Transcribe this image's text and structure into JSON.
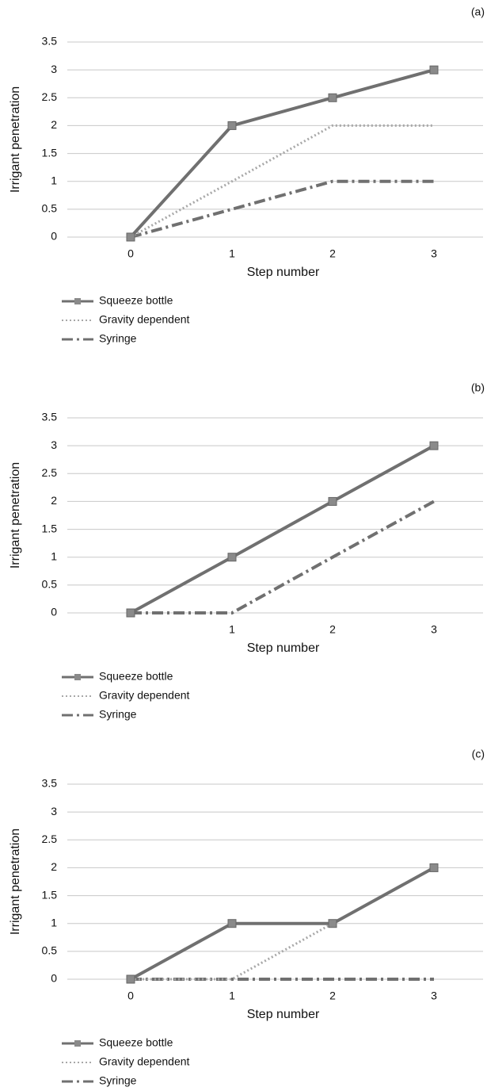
{
  "chart_data": [
    {
      "type": "line",
      "label": "(a)",
      "xlabel": "Step number",
      "ylabel": "Irrigant penetration",
      "categories": [
        0,
        1,
        2,
        3
      ],
      "ylim": [
        0,
        3.5
      ],
      "yticks": [
        0,
        0.5,
        1,
        1.5,
        2,
        2.5,
        3,
        3.5
      ],
      "grid": true,
      "series": [
        {
          "name": "Squeeze bottle",
          "color": "#707070",
          "values": [
            0,
            2,
            2.5,
            3
          ]
        },
        {
          "name": "Gravity dependent",
          "color": "#a8a8a8",
          "values": [
            0,
            1,
            2,
            2
          ]
        },
        {
          "name": "Syringe",
          "color": "#707070",
          "values": [
            0,
            0.5,
            1,
            1
          ]
        }
      ]
    },
    {
      "type": "line",
      "label": "(b)",
      "xlabel": "Step number",
      "ylabel": "Irrigant penetration",
      "categories": [
        null,
        1,
        2,
        3
      ],
      "ylim": [
        0,
        3.5
      ],
      "yticks": [
        0,
        0.5,
        1,
        1.5,
        2,
        2.5,
        3,
        3.5
      ],
      "grid": true,
      "series": [
        {
          "name": "Squeeze bottle",
          "color": "#707070",
          "values": [
            0,
            1,
            2,
            3
          ]
        },
        {
          "name": "Gravity dependent",
          "color": "#a8a8a8",
          "values": [
            0,
            1,
            2,
            3
          ]
        },
        {
          "name": "Syringe",
          "color": "#707070",
          "values": [
            0,
            0,
            1,
            2
          ]
        }
      ]
    },
    {
      "type": "line",
      "label": "(c)",
      "xlabel": "Step number",
      "ylabel": "Irrigant penetration",
      "categories": [
        0,
        1,
        2,
        3
      ],
      "ylim": [
        0,
        3.5
      ],
      "yticks": [
        0,
        0.5,
        1,
        1.5,
        2,
        2.5,
        3,
        3.5
      ],
      "grid": true,
      "series": [
        {
          "name": "Squeeze bottle",
          "color": "#707070",
          "values": [
            0,
            1,
            1,
            2
          ]
        },
        {
          "name": "Gravity dependent",
          "color": "#a8a8a8",
          "values": [
            0,
            0,
            1,
            2
          ]
        },
        {
          "name": "Syringe",
          "color": "#707070",
          "values": [
            0,
            0,
            0,
            0
          ]
        }
      ]
    }
  ]
}
